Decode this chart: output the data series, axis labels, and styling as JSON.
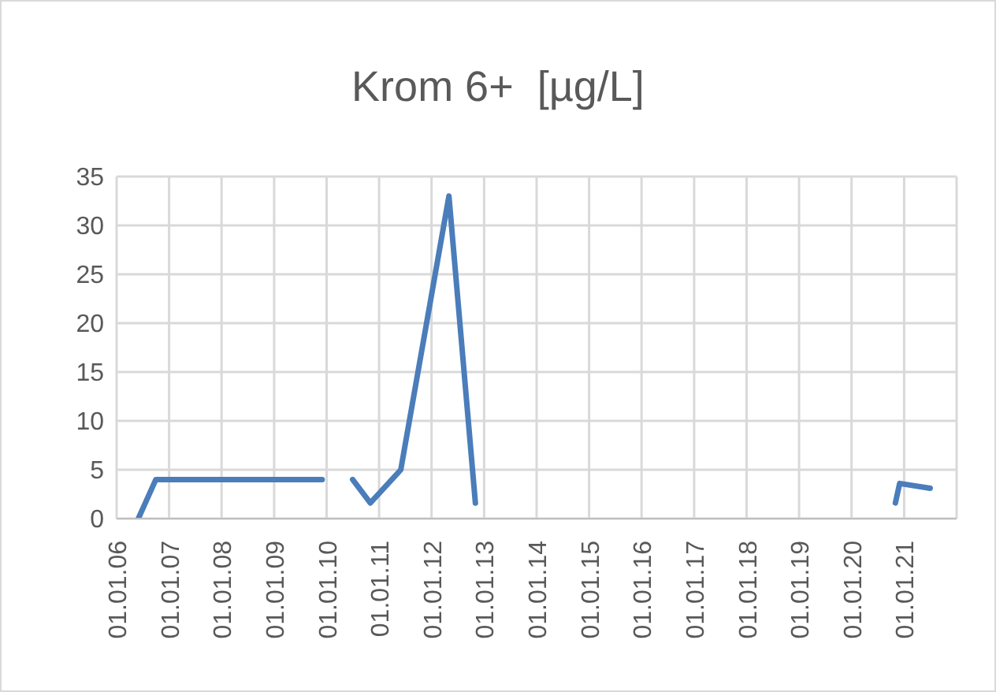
{
  "chart_data": {
    "type": "line",
    "title": "Krom 6+  [µg/L]",
    "x": [
      "2006-06",
      "2006-10",
      "2009-12",
      "2010-03",
      "2010-07",
      "2010-11",
      "2011-06",
      "2012-05",
      "2012-11",
      "2016-06",
      "2020-11",
      "2020-12",
      "2021-07"
    ],
    "series": [
      {
        "color": "#4a7dba",
        "values": [
          0,
          4,
          4,
          null,
          4,
          1.6,
          5,
          33,
          1.6,
          null,
          1.6,
          3.6,
          3.1
        ]
      }
    ],
    "xlim": [
      "2006-01-01",
      "2022-01-01"
    ],
    "xticks": [
      {
        "value": "2006-01-01",
        "label": "01.01.06"
      },
      {
        "value": "2007-01-01",
        "label": "01.01.07"
      },
      {
        "value": "2008-01-01",
        "label": "01.01.08"
      },
      {
        "value": "2009-01-01",
        "label": "01.01.09"
      },
      {
        "value": "2010-01-01",
        "label": "01.01.10"
      },
      {
        "value": "2011-01-01",
        "label": "01.01.11"
      },
      {
        "value": "2012-01-01",
        "label": "01.01.12"
      },
      {
        "value": "2013-01-01",
        "label": "01.01.13"
      },
      {
        "value": "2014-01-01",
        "label": "01.01.14"
      },
      {
        "value": "2015-01-01",
        "label": "01.01.15"
      },
      {
        "value": "2016-01-01",
        "label": "01.01.16"
      },
      {
        "value": "2017-01-01",
        "label": "01.01.17"
      },
      {
        "value": "2018-01-01",
        "label": "01.01.18"
      },
      {
        "value": "2019-01-01",
        "label": "01.01.19"
      },
      {
        "value": "2020-01-01",
        "label": "01.01.20"
      },
      {
        "value": "2021-01-01",
        "label": "01.01.21"
      },
      {
        "value": "2022-01-01",
        "label": null
      }
    ],
    "ylim": [
      0,
      35
    ],
    "yticks": [
      0,
      5,
      10,
      15,
      20,
      25,
      30,
      35
    ],
    "grid": true,
    "marker": "none",
    "line_style": "solid"
  }
}
